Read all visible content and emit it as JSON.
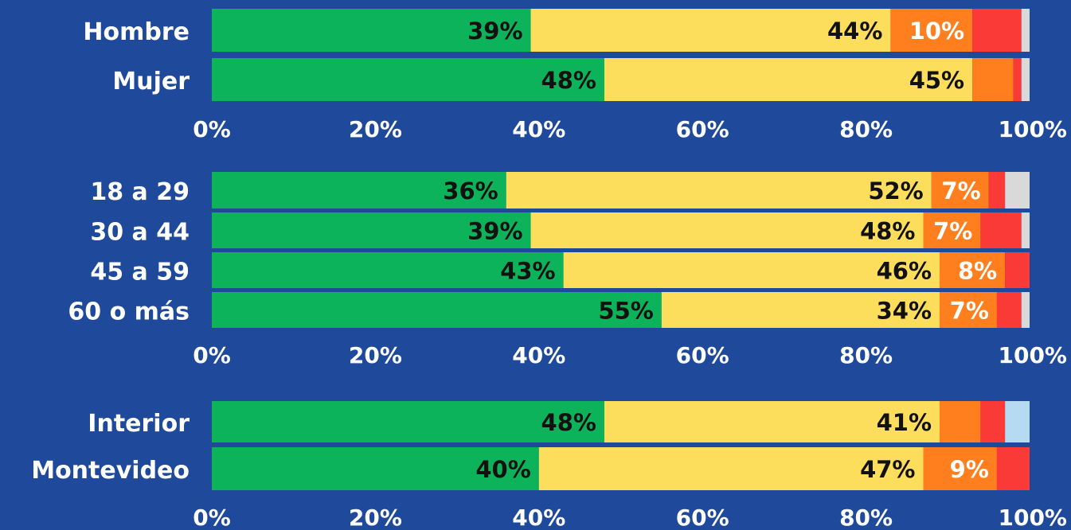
{
  "colors": {
    "background": "#1f4a9c",
    "green": "#0db35b",
    "yellow": "#fddd5c",
    "orange": "#ff7f1f",
    "red": "#fa3a37",
    "gray": "#d9d9d9",
    "light_blue": "#b5daf2",
    "text_light": "#ffffff",
    "text_dark": "#111111"
  },
  "chart_data": [
    {
      "type": "bar",
      "orientation": "horizontal",
      "stacked": true,
      "categories": [
        "Hombre",
        "Mujer"
      ],
      "series": [
        {
          "color": "green",
          "values": [
            39,
            48
          ],
          "labels": [
            "39%",
            "48%"
          ]
        },
        {
          "color": "yellow",
          "values": [
            44,
            45
          ],
          "labels": [
            "44%",
            "45%"
          ]
        },
        {
          "color": "orange",
          "values": [
            10,
            5
          ],
          "labels": [
            "10%",
            ""
          ]
        },
        {
          "color": "red",
          "values": [
            6,
            1
          ],
          "labels": [
            "",
            ""
          ]
        },
        {
          "color": "gray",
          "values": [
            1,
            1
          ],
          "labels": [
            "",
            ""
          ]
        }
      ],
      "x_ticks": [
        "0%",
        "20%",
        "40%",
        "60%",
        "80%",
        "100%"
      ],
      "xlim": [
        0,
        100
      ]
    },
    {
      "type": "bar",
      "orientation": "horizontal",
      "stacked": true,
      "categories": [
        "18 a 29",
        "30 a 44",
        "45 a 59",
        "60 o más"
      ],
      "series": [
        {
          "color": "green",
          "values": [
            36,
            39,
            43,
            55
          ],
          "labels": [
            "36%",
            "39%",
            "43%",
            "55%"
          ]
        },
        {
          "color": "yellow",
          "values": [
            52,
            48,
            46,
            34
          ],
          "labels": [
            "52%",
            "48%",
            "46%",
            "34%"
          ]
        },
        {
          "color": "orange",
          "values": [
            7,
            7,
            8,
            7
          ],
          "labels": [
            "7%",
            "7%",
            "8%",
            "7%"
          ]
        },
        {
          "color": "red",
          "values": [
            2,
            5,
            3,
            3
          ],
          "labels": [
            "",
            "",
            "",
            ""
          ]
        },
        {
          "color": "gray",
          "values": [
            3,
            1,
            0,
            1
          ],
          "labels": [
            "",
            "",
            "",
            ""
          ]
        }
      ],
      "x_ticks": [
        "0%",
        "20%",
        "40%",
        "60%",
        "80%",
        "100%"
      ],
      "xlim": [
        0,
        100
      ]
    },
    {
      "type": "bar",
      "orientation": "horizontal",
      "stacked": true,
      "categories": [
        "Interior",
        "Montevideo"
      ],
      "series": [
        {
          "color": "green",
          "values": [
            48,
            40
          ],
          "labels": [
            "48%",
            "40%"
          ]
        },
        {
          "color": "yellow",
          "values": [
            41,
            47
          ],
          "labels": [
            "41%",
            "47%"
          ]
        },
        {
          "color": "orange",
          "values": [
            5,
            9
          ],
          "labels": [
            "",
            "9%"
          ]
        },
        {
          "color": "red",
          "values": [
            3,
            4
          ],
          "labels": [
            "",
            ""
          ]
        },
        {
          "color": "light_blue",
          "values": [
            3,
            0
          ],
          "labels": [
            "",
            ""
          ]
        }
      ],
      "x_ticks": [
        "0%",
        "20%",
        "40%",
        "60%",
        "80%",
        "100%"
      ],
      "xlim": [
        0,
        100
      ]
    }
  ]
}
